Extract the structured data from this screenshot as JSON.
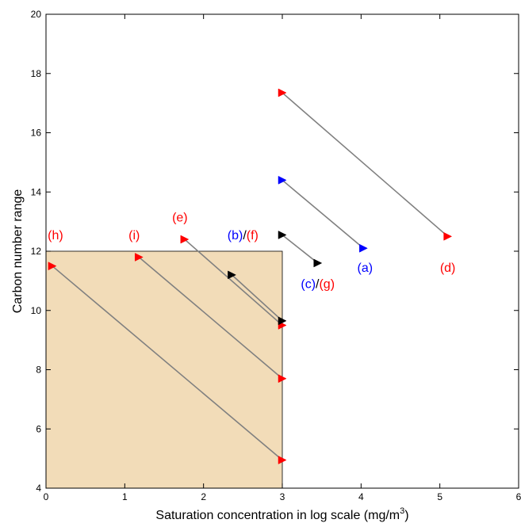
{
  "chart_data": {
    "type": "scatter",
    "xlabel": "Saturation concentration in log scale (",
    "xlabel_unit": "mg/m",
    "xlabel_sup": "3",
    "xlabel_end": ")",
    "ylabel": "Carbon number range",
    "xlim": [
      0,
      6
    ],
    "ylim": [
      4,
      20
    ],
    "x_ticks": [
      "0",
      "1",
      "2",
      "3",
      "4",
      "5",
      "6"
    ],
    "y_ticks": [
      "4",
      "6",
      "8",
      "10",
      "12",
      "14",
      "16",
      "18",
      "20"
    ],
    "shaded_region": {
      "x": [
        0,
        3
      ],
      "y": [
        4,
        12
      ],
      "color": "#f2dcb8"
    },
    "line_color": "#808080",
    "segments": [
      {
        "from": [
          0.08,
          11.5
        ],
        "to": [
          3.0,
          4.95
        ],
        "from_color": "#ff0000",
        "to_color": "#ff0000"
      },
      {
        "from": [
          1.18,
          11.8
        ],
        "to": [
          3.0,
          7.7
        ],
        "from_color": "#ff0000",
        "to_color": "#ff0000"
      },
      {
        "from": [
          1.76,
          12.4
        ],
        "to": [
          3.0,
          9.5
        ],
        "from_color": "#ff0000",
        "to_color": "#ff0000"
      },
      {
        "from": [
          2.36,
          11.2
        ],
        "to": [
          3.0,
          9.65
        ],
        "from_color": "#000000",
        "to_color": "#000000"
      },
      {
        "from": [
          3.0,
          12.55
        ],
        "to": [
          3.45,
          11.6
        ],
        "from_color": "#000000",
        "to_color": "#000000"
      },
      {
        "from": [
          3.0,
          14.4
        ],
        "to": [
          4.03,
          12.1
        ],
        "from_color": "#0000ff",
        "to_color": "#0000ff"
      },
      {
        "from": [
          3.0,
          17.35
        ],
        "to": [
          5.1,
          12.5
        ],
        "from_color": "#ff0000",
        "to_color": "#ff0000"
      }
    ],
    "annotations": [
      {
        "parts": [
          {
            "text": "(h)",
            "color": "#ff0000"
          }
        ],
        "x": 0.12,
        "y": 12.4
      },
      {
        "parts": [
          {
            "text": "(i)",
            "color": "#ff0000"
          }
        ],
        "x": 1.12,
        "y": 12.4
      },
      {
        "parts": [
          {
            "text": "(e)",
            "color": "#ff0000"
          }
        ],
        "x": 1.7,
        "y": 13.0
      },
      {
        "parts": [
          {
            "text": "(b)",
            "color": "#0000ff"
          },
          {
            "text": "/",
            "color": "#000000"
          },
          {
            "text": "(f)",
            "color": "#ff0000"
          }
        ],
        "x": 2.5,
        "y": 12.4
      },
      {
        "parts": [
          {
            "text": "(a)",
            "color": "#0000ff"
          }
        ],
        "x": 4.05,
        "y": 11.3
      },
      {
        "parts": [
          {
            "text": "(c)",
            "color": "#0000ff"
          },
          {
            "text": "/",
            "color": "#000000"
          },
          {
            "text": "(g)",
            "color": "#ff0000"
          }
        ],
        "x": 3.45,
        "y": 10.75
      },
      {
        "parts": [
          {
            "text": "(d)",
            "color": "#ff0000"
          }
        ],
        "x": 5.1,
        "y": 11.3
      }
    ]
  }
}
